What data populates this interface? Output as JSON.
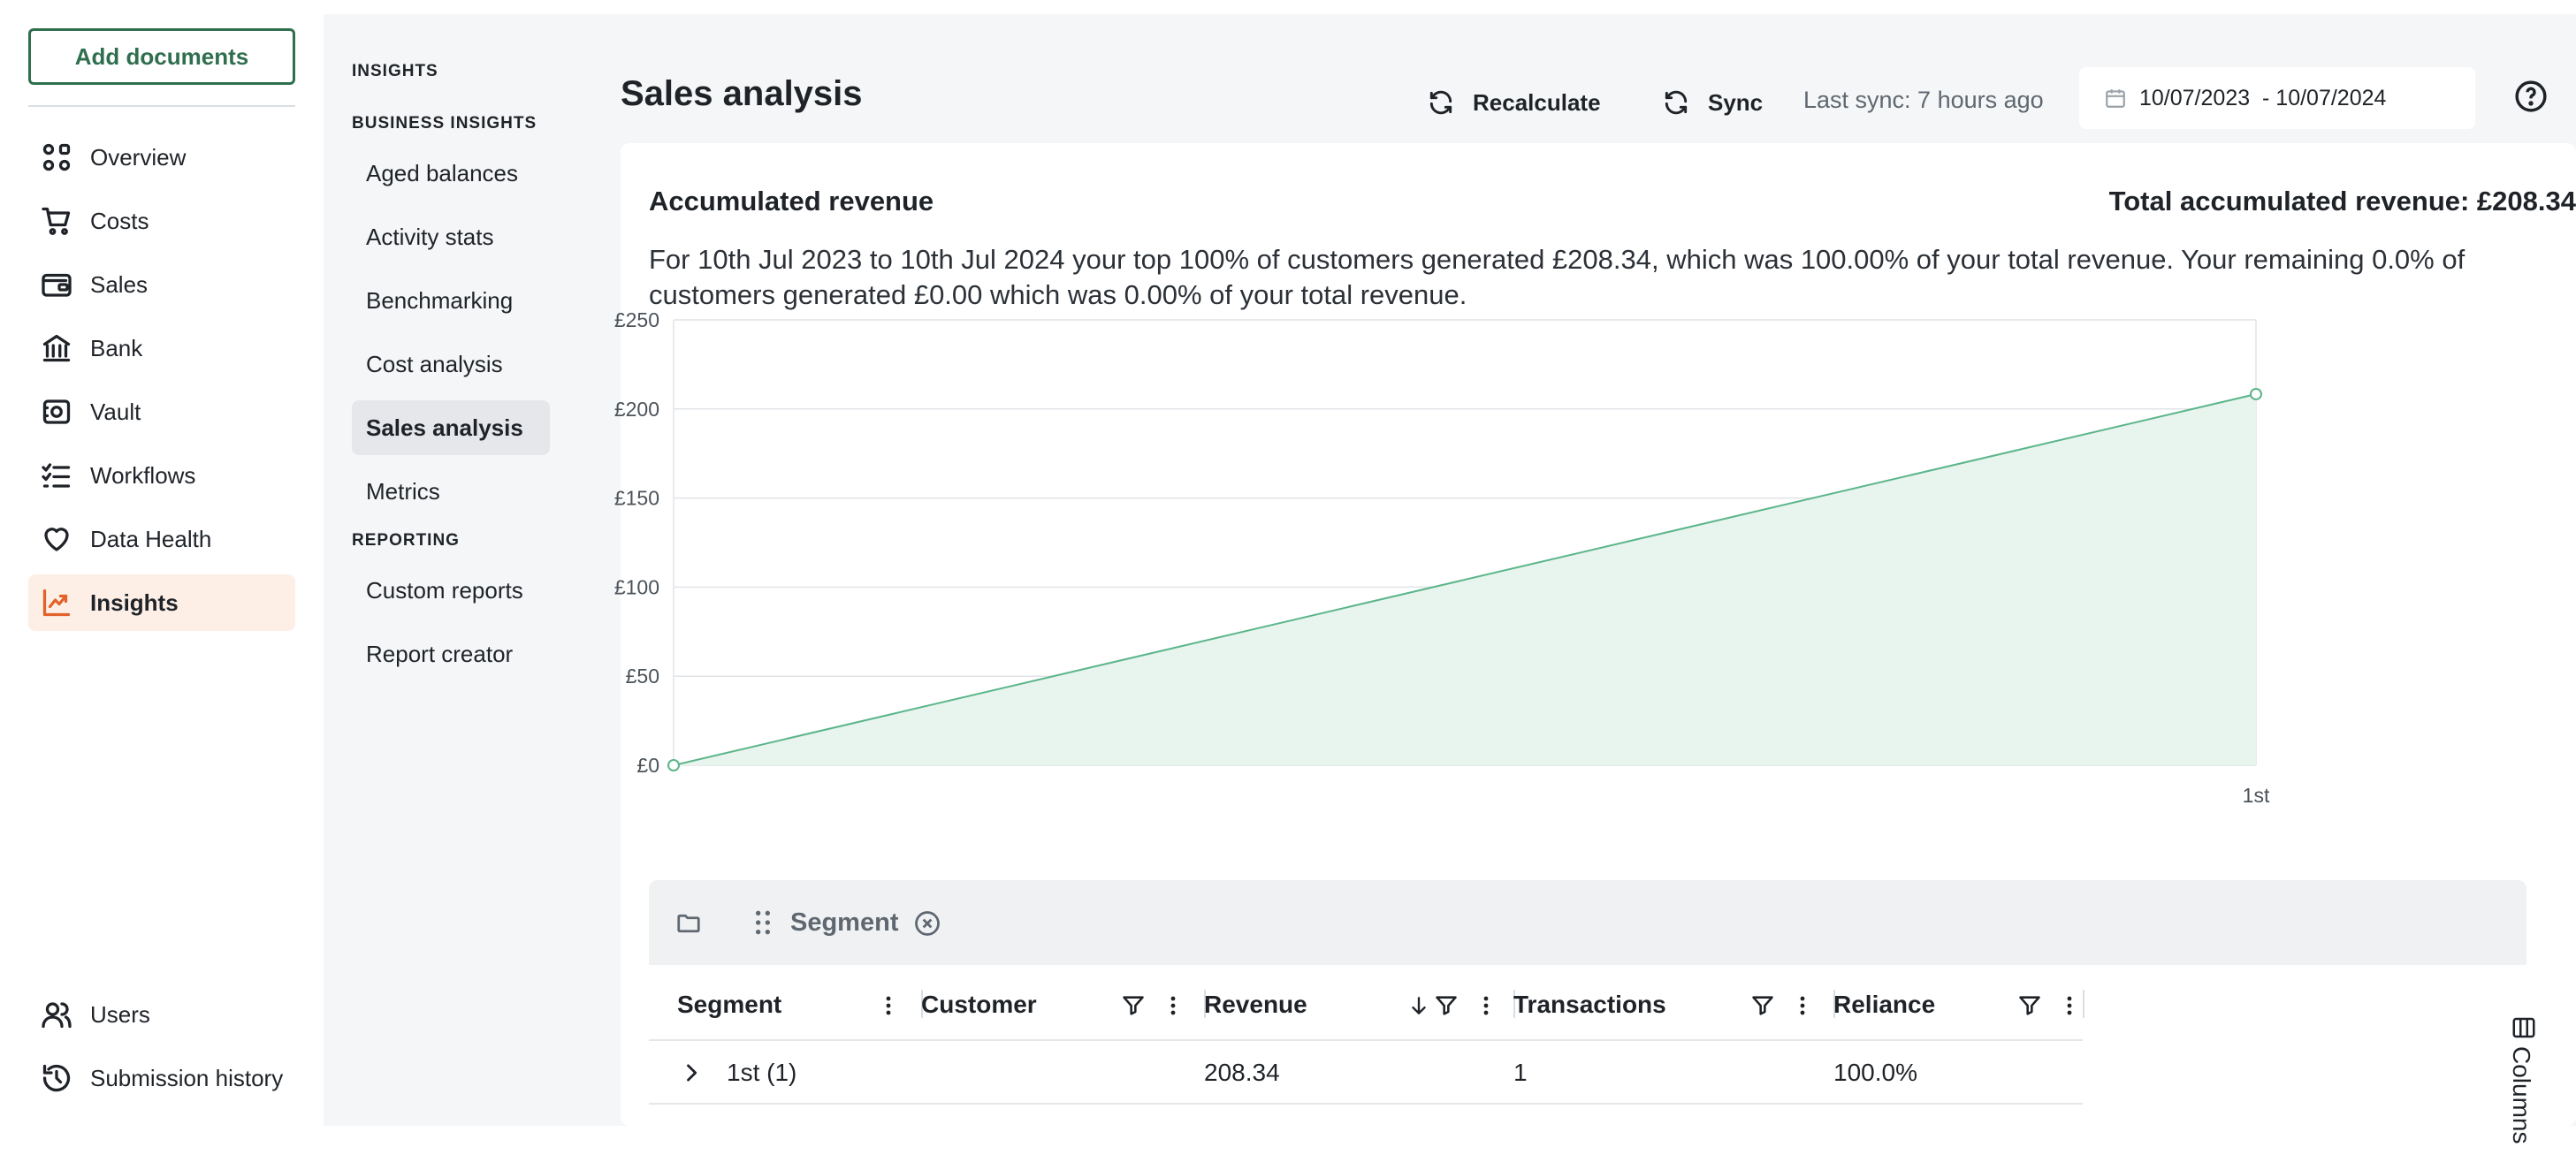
{
  "nav": {
    "add_documents": "Add documents",
    "items": [
      {
        "label": "Overview",
        "icon": "overview-icon"
      },
      {
        "label": "Costs",
        "icon": "cart-icon"
      },
      {
        "label": "Sales",
        "icon": "wallet-icon"
      },
      {
        "label": "Bank",
        "icon": "bank-icon"
      },
      {
        "label": "Vault",
        "icon": "vault-icon"
      },
      {
        "label": "Workflows",
        "icon": "checklist-icon"
      },
      {
        "label": "Data Health",
        "icon": "heart-icon"
      },
      {
        "label": "Insights",
        "icon": "trend-chart-icon",
        "active": true
      }
    ],
    "bottom_items": [
      {
        "label": "Users",
        "icon": "users-icon"
      },
      {
        "label": "Submission history",
        "icon": "history-icon"
      }
    ],
    "active_color": "#e2622a",
    "brand_color": "#2f6f4e"
  },
  "subnav": {
    "title": "INSIGHTS",
    "section_business": "BUSINESS INSIGHTS",
    "business_items": [
      "Aged balances",
      "Activity stats",
      "Benchmarking",
      "Cost analysis",
      "Sales analysis",
      "Metrics"
    ],
    "active_item": "Sales analysis",
    "section_reporting": "REPORTING",
    "reporting_items": [
      "Custom reports",
      "Report creator"
    ]
  },
  "header": {
    "title": "Sales analysis",
    "recalculate": "Recalculate",
    "sync": "Sync",
    "last_sync": "Last sync: 7 hours ago",
    "date_range": "10/07/2023  - 10/07/2024"
  },
  "card": {
    "title": "Accumulated revenue",
    "total": "Total accumulated revenue: £208.34",
    "summary": "For 10th Jul 2023 to 10th Jul 2024 your top 100% of customers generated £208.34, which was 100.00% of your total revenue. Your remaining 0.0% of customers generated £0.00 which was 0.00% of your total revenue."
  },
  "chart_data": {
    "type": "area",
    "x": [
      "",
      "1st"
    ],
    "values": [
      0,
      208.34
    ],
    "y_ticks": [
      "£0",
      "£50",
      "£100",
      "£150",
      "£200",
      "£250"
    ],
    "ylim": [
      0,
      250
    ],
    "grid": true,
    "line_color": "#5bb58a",
    "fill_color": "#e8f4ee"
  },
  "grid": {
    "group_chip": "Segment",
    "columns": [
      "Segment",
      "Customer",
      "Revenue",
      "Transactions",
      "Reliance"
    ],
    "sort_column": "Revenue",
    "sort_direction": "desc",
    "rows": [
      {
        "segment": "1st (1)",
        "customer": "",
        "revenue": "208.34",
        "transactions": "1",
        "reliance": "100.0%"
      }
    ],
    "side_panel": "Columns"
  }
}
